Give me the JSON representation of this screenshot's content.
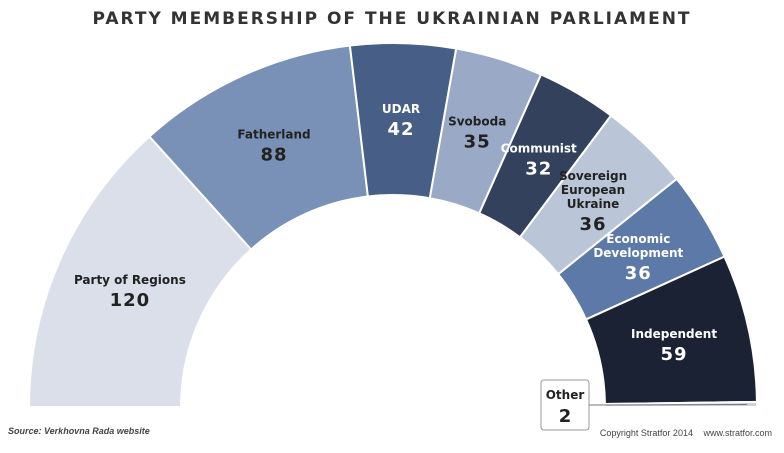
{
  "title": "PARTY MEMBERSHIP OF THE UKRAINIAN PARLIAMENT",
  "source": "Source: Verkhovna Rada website",
  "copyright": "Copyright Stratfor 2014",
  "website": "www.stratfor.com",
  "chart_data": {
    "type": "pie",
    "subtype": "semicircle",
    "title": "PARTY MEMBERSHIP OF THE UKRAINIAN PARLIAMENT",
    "categories": [
      "Party of Regions",
      "Fatherland",
      "UDAR",
      "Svoboda",
      "Communist",
      "Sovereign European Ukraine",
      "Economic Development",
      "Independent",
      "Other"
    ],
    "values": [
      120,
      88,
      42,
      35,
      32,
      36,
      36,
      59,
      2
    ],
    "colors": [
      "#dadfea",
      "#7a91b7",
      "#475e86",
      "#9aaac6",
      "#33415c",
      "#bac6d8",
      "#5c79a8",
      "#1a2233",
      "#c9d2e2"
    ],
    "label_lines": [
      [
        "Party of Regions"
      ],
      [
        "Fatherland"
      ],
      [
        "UDAR"
      ],
      [
        "Svoboda"
      ],
      [
        "Communist"
      ],
      [
        "Sovereign",
        "European",
        "Ukraine"
      ],
      [
        "Economic",
        "Development"
      ],
      [
        "Independent"
      ],
      [
        "Other"
      ]
    ],
    "label_colors": [
      "#222222",
      "#222222",
      "#ffffff",
      "#222222",
      "#ffffff",
      "#222222",
      "#ffffff",
      "#ffffff",
      "#222222"
    ]
  }
}
